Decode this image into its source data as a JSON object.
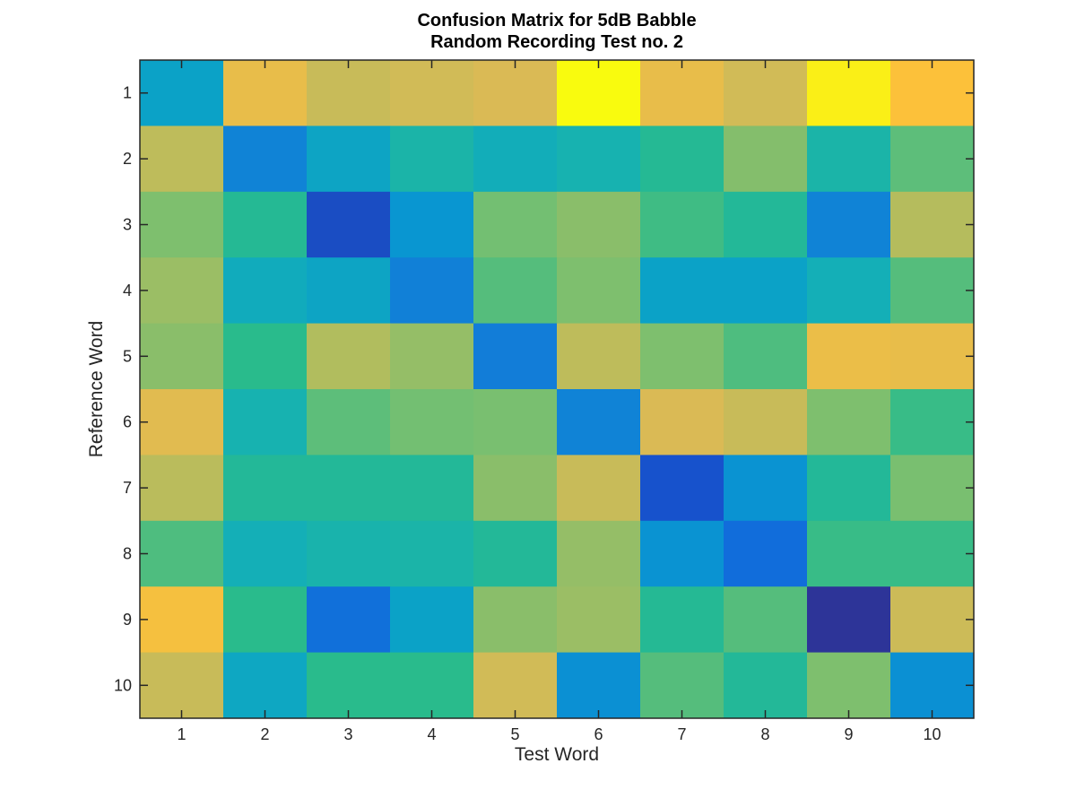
{
  "chart_data": {
    "type": "heatmap",
    "title": "Confusion Matrix for 5dB Babble",
    "subtitle": "Random Recording Test no. 2",
    "xlabel": "Test Word",
    "ylabel": "Reference Word",
    "x_categories": [
      "1",
      "2",
      "3",
      "4",
      "5",
      "6",
      "7",
      "8",
      "9",
      "10"
    ],
    "y_categories": [
      "1",
      "2",
      "3",
      "4",
      "5",
      "6",
      "7",
      "8",
      "9",
      "10"
    ],
    "colormap": "parula",
    "grid": false,
    "colorbar": false,
    "values": [
      [
        0.33,
        0.84,
        0.76,
        0.78,
        0.8,
        1.0,
        0.84,
        0.78,
        0.98,
        0.9
      ],
      [
        0.74,
        0.22,
        0.34,
        0.43,
        0.38,
        0.41,
        0.48,
        0.63,
        0.43,
        0.57
      ],
      [
        0.62,
        0.48,
        0.07,
        0.28,
        0.6,
        0.64,
        0.53,
        0.47,
        0.22,
        0.72
      ],
      [
        0.67,
        0.37,
        0.34,
        0.21,
        0.56,
        0.62,
        0.33,
        0.33,
        0.39,
        0.56
      ],
      [
        0.64,
        0.5,
        0.71,
        0.66,
        0.2,
        0.74,
        0.62,
        0.55,
        0.85,
        0.84
      ],
      [
        0.82,
        0.41,
        0.57,
        0.6,
        0.61,
        0.22,
        0.8,
        0.76,
        0.62,
        0.52
      ],
      [
        0.73,
        0.47,
        0.47,
        0.47,
        0.64,
        0.76,
        0.08,
        0.27,
        0.47,
        0.61
      ],
      [
        0.55,
        0.39,
        0.42,
        0.43,
        0.47,
        0.66,
        0.27,
        0.15,
        0.52,
        0.52
      ],
      [
        0.88,
        0.5,
        0.16,
        0.33,
        0.64,
        0.67,
        0.48,
        0.56,
        0.02,
        0.77
      ],
      [
        0.76,
        0.35,
        0.5,
        0.5,
        0.78,
        0.26,
        0.56,
        0.47,
        0.62,
        0.26
      ]
    ]
  }
}
